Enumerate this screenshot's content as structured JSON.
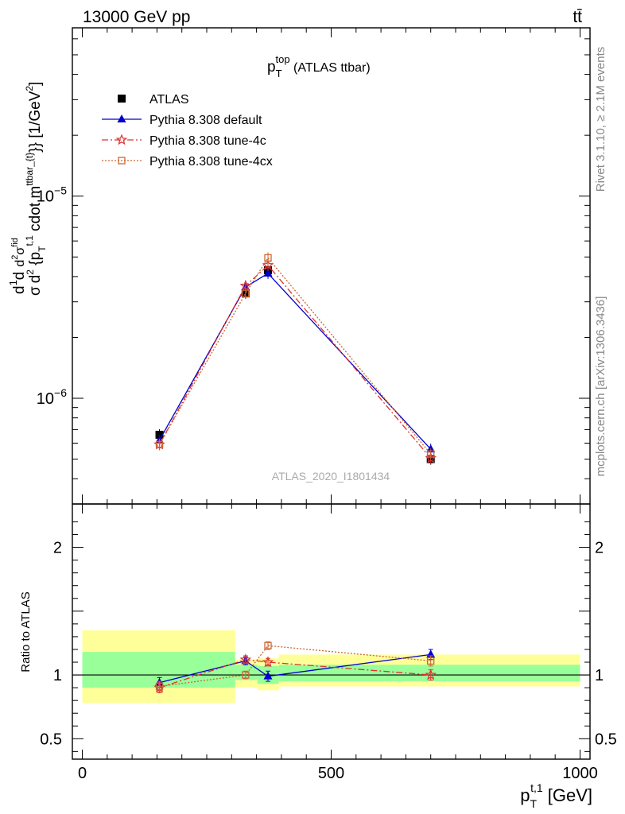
{
  "header": {
    "left": "13000 GeV pp",
    "right": "tt̄"
  },
  "side_labels": {
    "rivet": "Rivet 3.1.10, ≥ 2.1M events",
    "mcplots": "mcplots.cern.ch [arXiv:1306.3436]"
  },
  "chart_data": [
    {
      "type": "line",
      "title": "p_T^top (ATLAS ttbar)",
      "title_main": "p",
      "title_sub": "T",
      "title_sup": "top",
      "title_rest": " (ATLAS ttbar)",
      "ylabel": "d\\frac{1}{\\sigma}d\\frac{d^2\\sigma^{fid}}{d^2 {p_T^{t,1} cdot m^{ttbar_{t}}}} [1/GeV^2]",
      "yscale": "log",
      "xlim": [
        -20,
        1020
      ],
      "ylim": [
        3e-07,
        6.8e-05
      ],
      "yticks": [
        {
          "value": 1e-06,
          "base": "10",
          "exp": "−6"
        },
        {
          "value": 1e-05,
          "base": "10",
          "exp": "−5"
        }
      ],
      "watermark": "ATLAS_2020_I1801434",
      "legend_position": "top-left",
      "legend": [
        "ATLAS",
        "Pythia 8.308 default",
        "Pythia 8.308 tune-4c",
        "Pythia 8.308 tune-4cx"
      ],
      "series": [
        {
          "name": "ATLAS",
          "color": "#000000",
          "marker": "square",
          "x": [
            155,
            328,
            373,
            700
          ],
          "y": [
            6.6e-07,
            3.3e-06,
            4.3e-06,
            5e-07
          ]
        },
        {
          "name": "Pythia 8.308 default",
          "color": "#0000cc",
          "marker": "triangle",
          "x": [
            155,
            328,
            373,
            700
          ],
          "y": [
            6.2e-07,
            3.55e-06,
            4.15e-06,
            5.6e-07
          ]
        },
        {
          "name": "Pythia 8.308 tune-4c",
          "color": "#dd3333",
          "marker": "star",
          "x": [
            155,
            328,
            373,
            700
          ],
          "y": [
            5.9e-07,
            3.6e-06,
            4.55e-06,
            5.05e-07
          ]
        },
        {
          "name": "Pythia 8.308 tune-4cx",
          "color": "#cc6633",
          "marker": "open-square",
          "x": [
            155,
            328,
            373,
            700
          ],
          "y": [
            5.9e-07,
            3.3e-06,
            4.95e-06,
            5.3e-07
          ]
        }
      ]
    },
    {
      "type": "line",
      "ylabel": "Ratio to ATLAS",
      "xlabel": "p_T^{t,1} [GeV]",
      "xlabel_main": "p",
      "xlabel_sub": "T",
      "xlabel_sup": "t,1",
      "xlabel_rest": " [GeV]",
      "xlim": [
        -20,
        1020
      ],
      "ylim": [
        0.34,
        2.34
      ],
      "xticks": [
        0,
        500,
        1000
      ],
      "xtick_labels": [
        "0",
        "500",
        "1000"
      ],
      "yticks": [
        0.5,
        1,
        2
      ],
      "ytick_labels": [
        "0.5",
        "1",
        "2"
      ],
      "bands": [
        {
          "x0": 0,
          "x1": 307,
          "stat": [
            0.9,
            1.18
          ],
          "total": [
            0.78,
            1.35
          ]
        },
        {
          "x0": 307,
          "x1": 352,
          "stat": [
            0.96,
            1.08
          ],
          "total": [
            0.9,
            1.12
          ]
        },
        {
          "x0": 352,
          "x1": 395,
          "stat": [
            0.93,
            1.07
          ],
          "total": [
            0.88,
            1.13
          ]
        },
        {
          "x0": 395,
          "x1": 1000,
          "stat": [
            0.95,
            1.08
          ],
          "total": [
            0.91,
            1.16
          ]
        }
      ],
      "series": [
        {
          "name": "Pythia 8.308 default",
          "color": "#0000cc",
          "marker": "triangle",
          "x": [
            155,
            328,
            373,
            700
          ],
          "y": [
            0.94,
            1.11,
            0.99,
            1.16
          ],
          "err": [
            0.04,
            0.03,
            0.04,
            0.04
          ]
        },
        {
          "name": "Pythia 8.308 tune-4c",
          "color": "#dd3333",
          "marker": "star",
          "x": [
            155,
            328,
            373,
            700
          ],
          "y": [
            0.9,
            1.12,
            1.1,
            1.0
          ],
          "err": [
            0.04,
            0.03,
            0.03,
            0.04
          ]
        },
        {
          "name": "Pythia 8.308 tune-4cx",
          "color": "#cc6633",
          "marker": "open-square",
          "x": [
            155,
            328,
            373,
            700
          ],
          "y": [
            0.91,
            1.0,
            1.23,
            1.11
          ],
          "err": [
            0.04,
            0.03,
            0.03,
            0.04
          ]
        }
      ]
    }
  ]
}
